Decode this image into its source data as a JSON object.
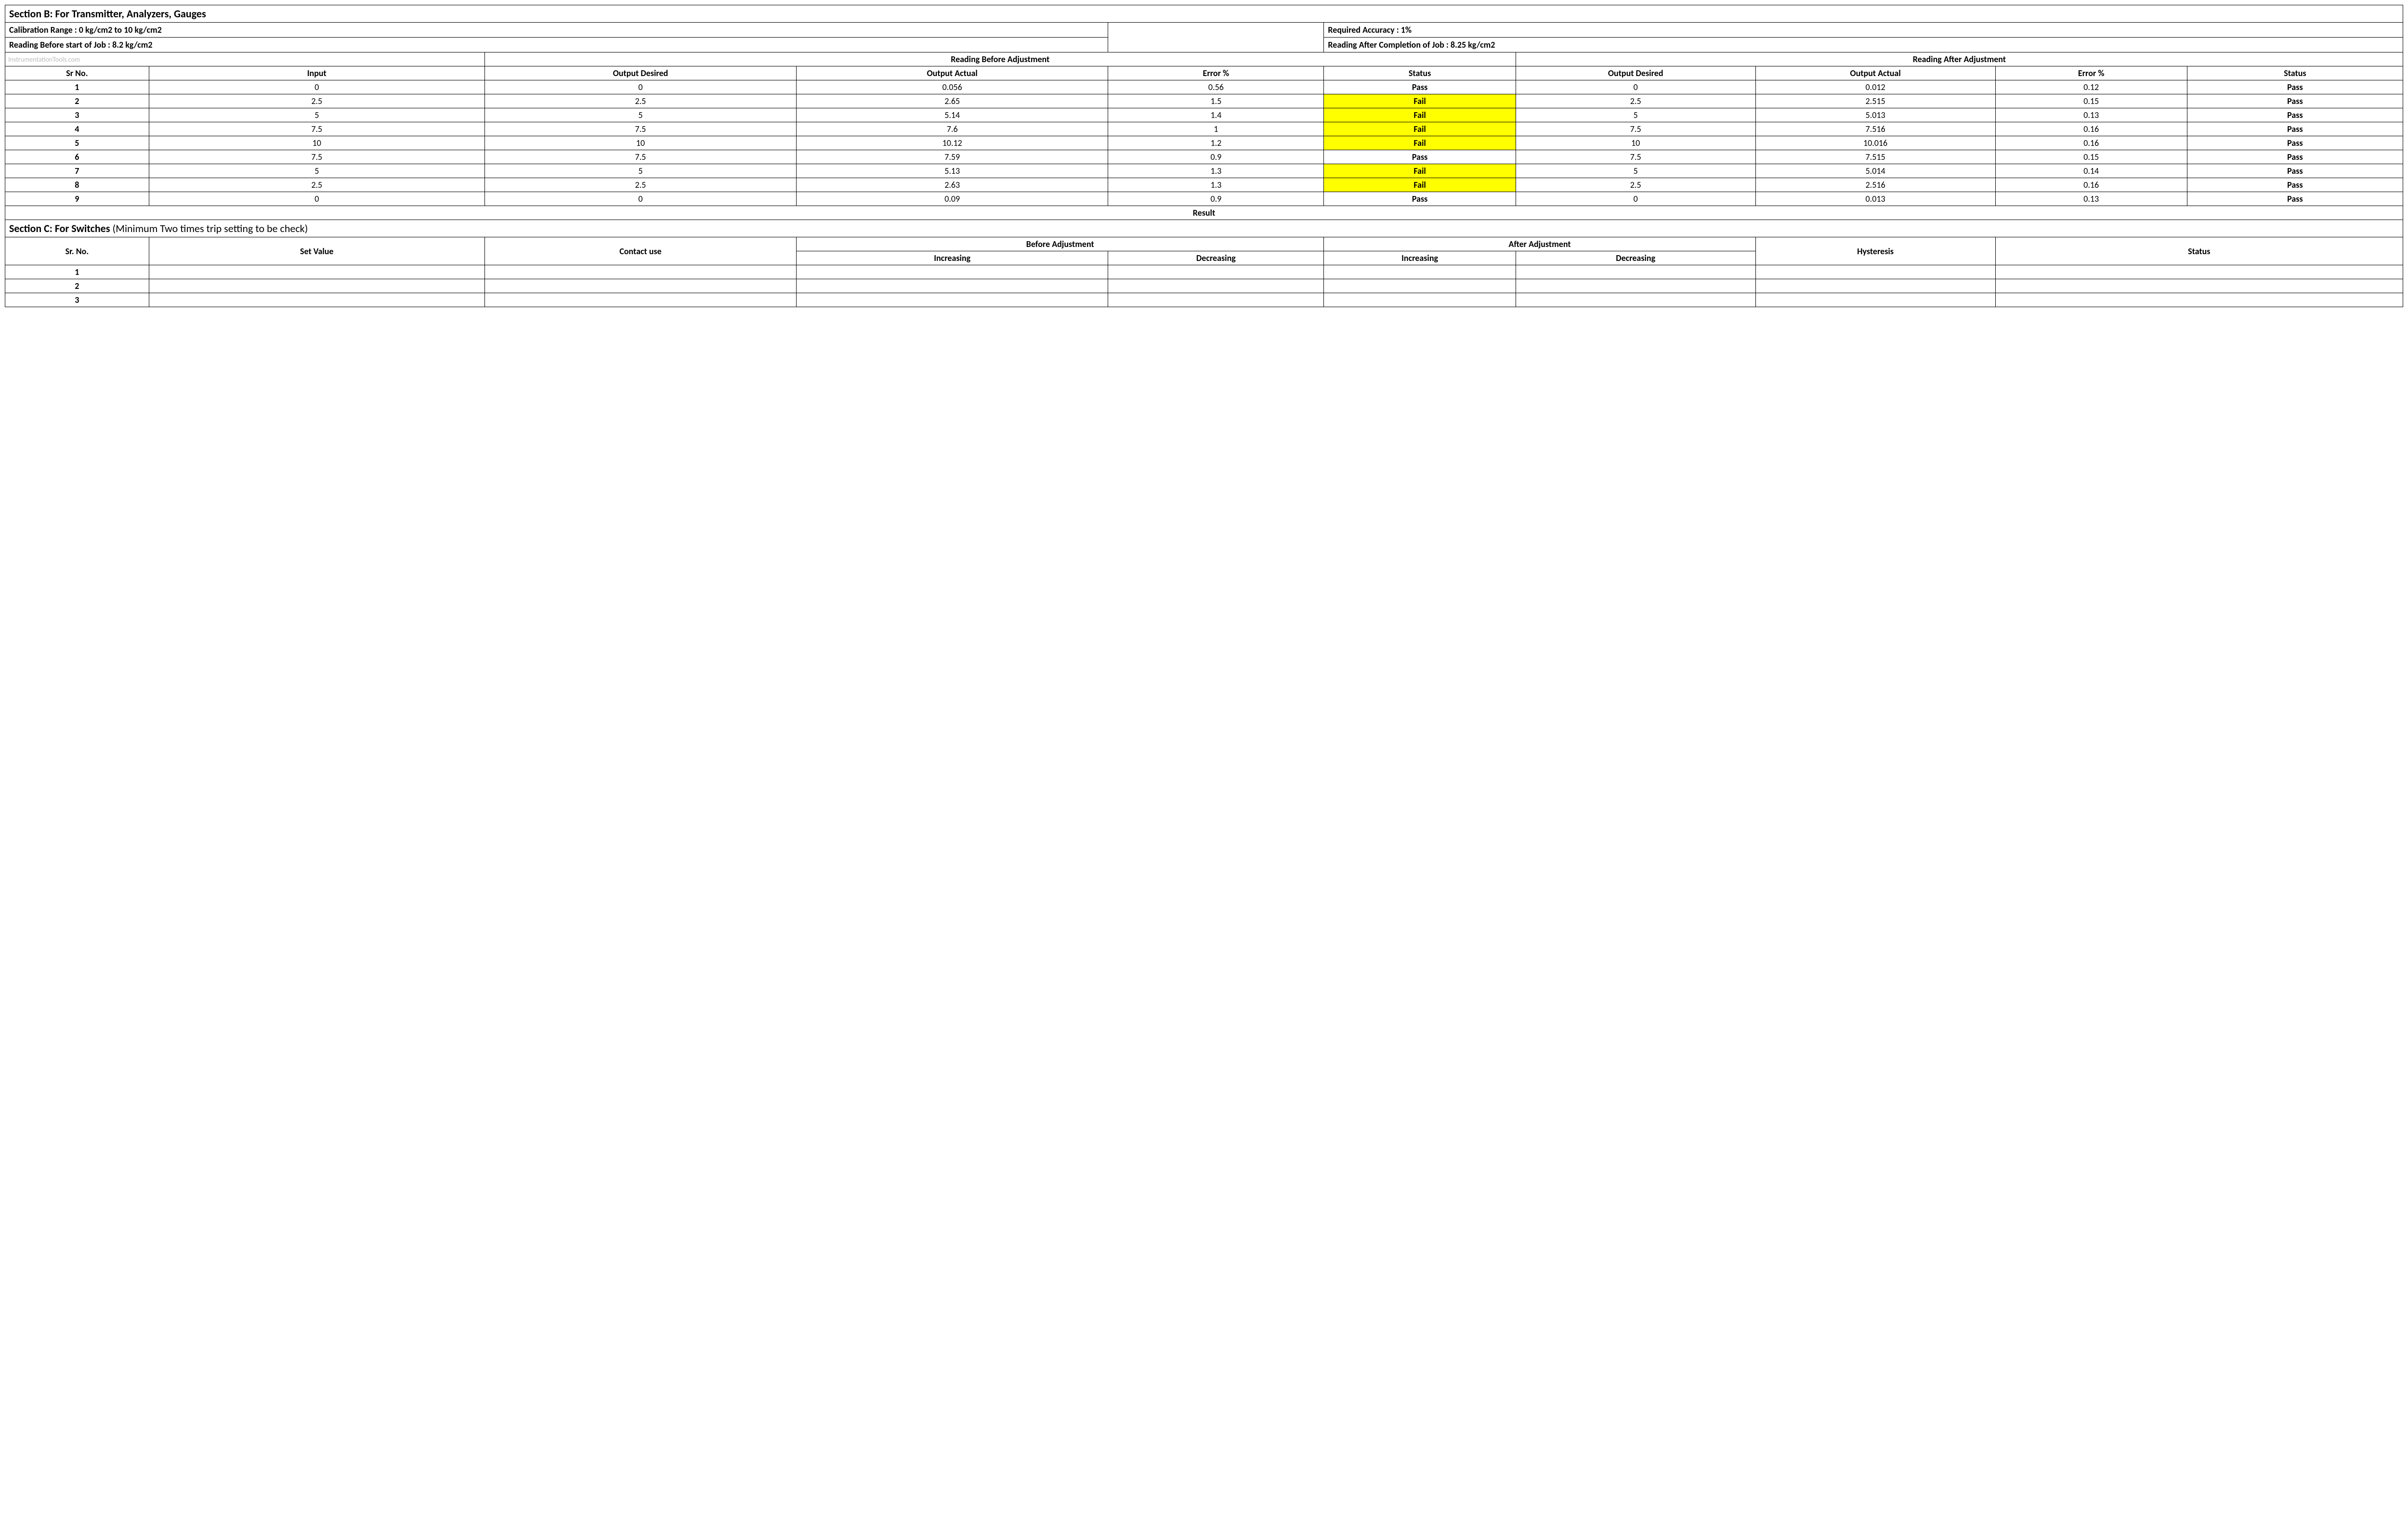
{
  "sectionB": {
    "title": "Section B:  For Transmitter, Analyzers, Gauges",
    "calibrationRange": "Calibration Range : 0 kg/cm2 to 10 kg/cm2",
    "requiredAccuracy": "Required Accuracy : 1%",
    "readingBefore": "Reading Before start of Job : 8.2 kg/cm2",
    "readingAfter": "Reading After Completion of Job : 8.25 kg/cm2",
    "watermark": "InstrumentationTools.com",
    "groupBefore": "Reading Before Adjustment",
    "groupAfter": "Reading After Adjustment",
    "columns": {
      "srNo": "Sr No.",
      "input": "Input",
      "outputDesired": "Output Desired",
      "outputActual": "Output Actual",
      "errorPct": "Error %",
      "status": "Status"
    },
    "rows": [
      {
        "sr": "1",
        "input": "0",
        "bd": "0",
        "ba": "0.056",
        "be": "0.56",
        "bs": "Pass",
        "ad": "0",
        "aa": "0.012",
        "ae": "0.12",
        "as": "Pass"
      },
      {
        "sr": "2",
        "input": "2.5",
        "bd": "2.5",
        "ba": "2.65",
        "be": "1.5",
        "bs": "Fail",
        "ad": "2.5",
        "aa": "2.515",
        "ae": "0.15",
        "as": "Pass"
      },
      {
        "sr": "3",
        "input": "5",
        "bd": "5",
        "ba": "5.14",
        "be": "1.4",
        "bs": "Fail",
        "ad": "5",
        "aa": "5.013",
        "ae": "0.13",
        "as": "Pass"
      },
      {
        "sr": "4",
        "input": "7.5",
        "bd": "7.5",
        "ba": "7.6",
        "be": "1",
        "bs": "Fail",
        "ad": "7.5",
        "aa": "7.516",
        "ae": "0.16",
        "as": "Pass"
      },
      {
        "sr": "5",
        "input": "10",
        "bd": "10",
        "ba": "10.12",
        "be": "1.2",
        "bs": "Fail",
        "ad": "10",
        "aa": "10.016",
        "ae": "0.16",
        "as": "Pass"
      },
      {
        "sr": "6",
        "input": "7.5",
        "bd": "7.5",
        "ba": "7.59",
        "be": "0.9",
        "bs": "Pass",
        "ad": "7.5",
        "aa": "7.515",
        "ae": "0.15",
        "as": "Pass"
      },
      {
        "sr": "7",
        "input": "5",
        "bd": "5",
        "ba": "5.13",
        "be": "1.3",
        "bs": "Fail",
        "ad": "5",
        "aa": "5.014",
        "ae": "0.14",
        "as": "Pass"
      },
      {
        "sr": "8",
        "input": "2.5",
        "bd": "2.5",
        "ba": "2.63",
        "be": "1.3",
        "bs": "Fail",
        "ad": "2.5",
        "aa": "2.516",
        "ae": "0.16",
        "as": "Pass"
      },
      {
        "sr": "9",
        "input": "0",
        "bd": "0",
        "ba": "0.09",
        "be": "0.9",
        "bs": "Pass",
        "ad": "0",
        "aa": "0.013",
        "ae": "0.13",
        "as": "Pass"
      }
    ],
    "resultLabel": "Result",
    "colors": {
      "failBg": "#ffff00",
      "border": "#000000",
      "watermark": "#bbbbbb",
      "background": "#ffffff"
    }
  },
  "sectionC": {
    "titleBold": "Section C:  For Switches",
    "titleNote": "   (Minimum Two times trip setting to be check)",
    "columns": {
      "srNo": "Sr. No.",
      "setValue": "Set Value",
      "contactUse": "Contact use",
      "beforeAdj": "Before Adjustment",
      "afterAdj": "After Adjustment",
      "increasing": "Increasing",
      "decreasing": "Decreasing",
      "hysteresis": "Hysteresis",
      "status": "Status"
    },
    "rows": [
      {
        "sr": "1"
      },
      {
        "sr": "2"
      },
      {
        "sr": "3"
      }
    ]
  },
  "layout": {
    "colWidths": [
      "6%",
      "14%",
      "13%",
      "13%",
      "9%",
      "8%",
      "10%",
      "10%",
      "8%",
      "9%"
    ],
    "fontFamily": "Calibri, Arial, sans-serif",
    "baseFontSize": 18,
    "titleFontSize": 22
  }
}
